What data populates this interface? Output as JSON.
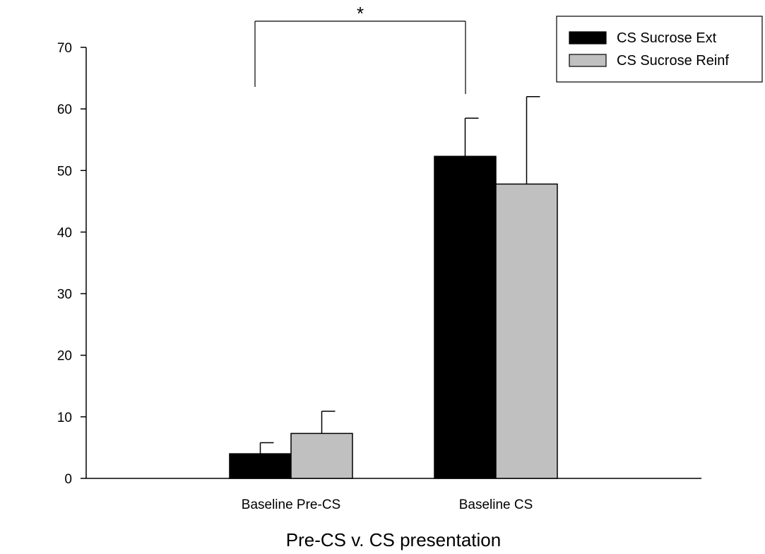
{
  "chart_data": {
    "type": "bar",
    "title": "",
    "xlabel": "Pre-CS v. CS presentation",
    "ylabel": "",
    "ylim": [
      0,
      70
    ],
    "yticks": [
      0,
      10,
      20,
      30,
      40,
      50,
      60,
      70
    ],
    "categories": [
      "Baseline Pre-CS",
      "Baseline CS"
    ],
    "series": [
      {
        "name": "CS Sucrose Ext",
        "color": "#000000",
        "values": [
          4.0,
          52.3
        ],
        "errors": [
          1.8,
          6.2
        ]
      },
      {
        "name": "CS Sucrose Reinf",
        "color": "#c0c0c0",
        "values": [
          7.3,
          47.8
        ],
        "errors": [
          3.6,
          14.2
        ]
      }
    ],
    "legend_position": "top-right",
    "grid": false,
    "annotations": [
      {
        "text": "*",
        "type": "significance-bracket",
        "between_categories": [
          "Baseline Pre-CS",
          "Baseline CS"
        ]
      }
    ]
  }
}
